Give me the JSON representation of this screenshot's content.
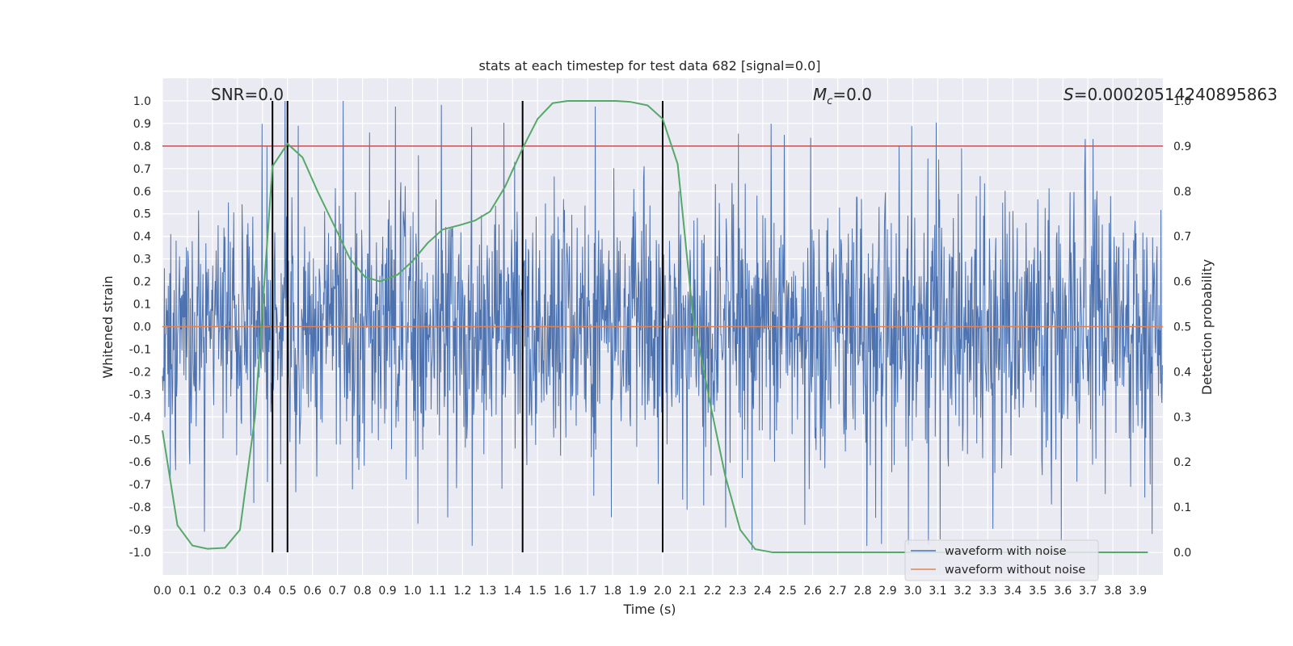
{
  "chart_data": {
    "type": "line",
    "title": "stats at each timestep for test data 682 [signal=0.0]",
    "xlabel": "Time (s)",
    "ylabel": "Whitened strain",
    "y2label": "Detection probability",
    "xlim": [
      0.0,
      4.0
    ],
    "ylim": [
      -1.1,
      1.1
    ],
    "y2lim": [
      -0.05,
      1.05
    ],
    "xticks": [
      "0.0",
      "0.1",
      "0.2",
      "0.3",
      "0.4",
      "0.5",
      "0.6",
      "0.7",
      "0.8",
      "0.9",
      "1.0",
      "1.1",
      "1.2",
      "1.3",
      "1.4",
      "1.5",
      "1.6",
      "1.7",
      "1.8",
      "1.9",
      "2.0",
      "2.1",
      "2.2",
      "2.3",
      "2.4",
      "2.5",
      "2.6",
      "2.7",
      "2.8",
      "2.9",
      "3.0",
      "3.1",
      "3.2",
      "3.3",
      "3.4",
      "3.5",
      "3.6",
      "3.7",
      "3.8",
      "3.9"
    ],
    "yticks": [
      "1.0",
      "0.9",
      "0.8",
      "0.7",
      "0.6",
      "0.5",
      "0.4",
      "0.3",
      "0.2",
      "0.1",
      "0.0",
      "-0.1",
      "-0.2",
      "-0.3",
      "-0.4",
      "-0.5",
      "-0.6",
      "-0.7",
      "-0.8",
      "-0.9",
      "-1.0"
    ],
    "y2ticks": [
      "1.0",
      "0.9",
      "0.8",
      "0.7",
      "0.6",
      "0.5",
      "0.4",
      "0.3",
      "0.2",
      "0.1",
      "0.0"
    ],
    "grid": true,
    "annotations": {
      "snr": "SNR=0.0",
      "mc_symbol": "M",
      "mc_sub": "c",
      "mc_value": "=0.0",
      "s_symbol": "S",
      "s_value": "=0.00020514240895863"
    },
    "threshold_y2": 0.9,
    "vertical_lines_x": [
      0.44,
      0.5,
      1.44,
      2.0
    ],
    "series": [
      {
        "name": "waveform with noise",
        "color": "#4c72b0",
        "description_values": "dense noise, amplitude mostly within ±0.6, peaks to ±1.0",
        "seed": 682,
        "n_samples": 2048
      },
      {
        "name": "waveform without noise",
        "color": "#dd8452",
        "values_constant": 0.0
      },
      {
        "color": "#55a868",
        "axis": "y2",
        "x": [
          0.0,
          0.06,
          0.12,
          0.18,
          0.25,
          0.31,
          0.37,
          0.44,
          0.5,
          0.56,
          0.62,
          0.69,
          0.75,
          0.81,
          0.87,
          0.94,
          1.0,
          1.06,
          1.12,
          1.19,
          1.25,
          1.31,
          1.37,
          1.44,
          1.5,
          1.56,
          1.62,
          1.69,
          1.75,
          1.81,
          1.87,
          1.94,
          2.0,
          2.06,
          2.12,
          2.19,
          2.25,
          2.31,
          2.37,
          2.44,
          2.5,
          3.0,
          3.5,
          3.94
        ],
        "values": [
          0.27,
          0.06,
          0.015,
          0.008,
          0.01,
          0.05,
          0.3,
          0.855,
          0.905,
          0.875,
          0.8,
          0.72,
          0.65,
          0.61,
          0.6,
          0.615,
          0.645,
          0.685,
          0.715,
          0.725,
          0.735,
          0.755,
          0.81,
          0.895,
          0.96,
          0.995,
          1.0,
          1.0,
          1.0,
          1.0,
          0.998,
          0.99,
          0.96,
          0.86,
          0.53,
          0.33,
          0.17,
          0.05,
          0.007,
          0.0,
          0.0,
          0.0,
          0.0,
          0.0
        ]
      }
    ],
    "legend": {
      "placement": "lower-right"
    },
    "colors": {
      "background": "#eaeaf2",
      "grid": "#ffffff",
      "threshold": "#c44e52",
      "vline": "#000000"
    }
  }
}
